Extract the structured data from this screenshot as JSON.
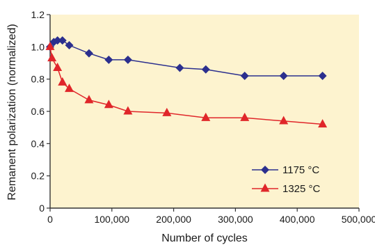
{
  "chart_data": {
    "type": "line",
    "title": "",
    "xlabel": "Number of cycles",
    "ylabel": "Remanent polarization (normalized)",
    "xlim": [
      0,
      500000
    ],
    "ylim": [
      0,
      1.2
    ],
    "x_ticks": [
      0,
      100000,
      200000,
      300000,
      400000,
      500000
    ],
    "x_tick_labels": [
      "0",
      "100,000",
      "200,000",
      "300,000",
      "400,000",
      "500,000"
    ],
    "y_ticks": [
      0,
      0.2,
      0.4,
      0.6,
      0.8,
      1.0,
      1.2
    ],
    "y_tick_labels": [
      "0",
      "0.2",
      "0.4",
      "0.6",
      "0.8",
      "1.0",
      "1.2"
    ],
    "grid": false,
    "plot_background": "#fdf3cf",
    "legend_position": "bottom-right",
    "series": [
      {
        "name": "1175 °C",
        "color": "#2b2f8e",
        "marker": "diamond",
        "points": [
          [
            0,
            1.0
          ],
          [
            6000,
            1.03
          ],
          [
            12000,
            1.04
          ],
          [
            20000,
            1.04
          ],
          [
            31000,
            1.01
          ],
          [
            63000,
            0.96
          ],
          [
            95000,
            0.92
          ],
          [
            126000,
            0.92
          ],
          [
            210000,
            0.87
          ],
          [
            252000,
            0.86
          ],
          [
            315000,
            0.82
          ],
          [
            378000,
            0.82
          ],
          [
            441000,
            0.82
          ]
        ]
      },
      {
        "name": "1325 °C",
        "color": "#e0262a",
        "marker": "triangle",
        "points": [
          [
            0,
            1.0
          ],
          [
            3000,
            0.93
          ],
          [
            12000,
            0.87
          ],
          [
            20000,
            0.78
          ],
          [
            31000,
            0.74
          ],
          [
            63000,
            0.67
          ],
          [
            95000,
            0.64
          ],
          [
            126000,
            0.6
          ],
          [
            189000,
            0.59
          ],
          [
            252000,
            0.56
          ],
          [
            315000,
            0.56
          ],
          [
            378000,
            0.54
          ],
          [
            441000,
            0.52
          ]
        ]
      }
    ]
  }
}
